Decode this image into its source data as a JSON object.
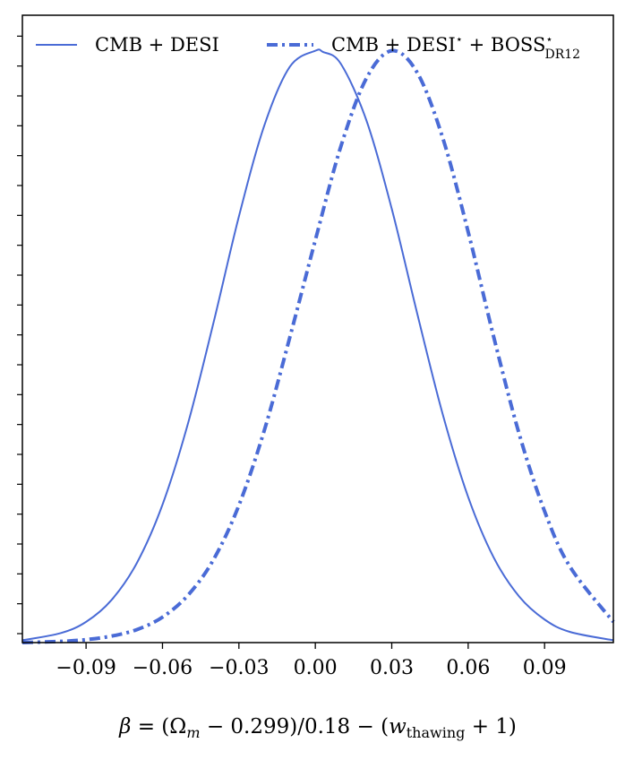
{
  "chart_data": {
    "type": "line",
    "title": "",
    "xlabel": {
      "beta": "β",
      "eq": " = (Ω",
      "m": "m",
      "mid": " − 0.299)/0.18 − (",
      "w": "w",
      "thawing": "thawing",
      "end": " + 1)"
    },
    "ylabel": "",
    "xlim": [
      -0.115,
      0.117
    ],
    "ylim": [
      0,
      1.06
    ],
    "xticks": [
      -0.09,
      -0.06,
      -0.03,
      0.0,
      0.03,
      0.06,
      0.09
    ],
    "xtick_labels": [
      "−0.09",
      "−0.06",
      "−0.03",
      "0.00",
      "0.03",
      "0.06",
      "0.09"
    ],
    "yticks_count": 21,
    "grid": false,
    "legend_position": "top",
    "series": [
      {
        "name": "CMB + DESI",
        "style": "solid",
        "color": "#4a6bd6",
        "x": [
          -0.115,
          -0.1,
          -0.09,
          -0.08,
          -0.07,
          -0.06,
          -0.05,
          -0.04,
          -0.03,
          -0.02,
          -0.01,
          0.0,
          0.003,
          0.01,
          0.02,
          0.03,
          0.04,
          0.05,
          0.06,
          0.07,
          0.08,
          0.09,
          0.1,
          0.117
        ],
        "y": [
          0.004,
          0.016,
          0.035,
          0.072,
          0.135,
          0.233,
          0.37,
          0.54,
          0.72,
          0.874,
          0.973,
          1.0,
          0.998,
          0.978,
          0.883,
          0.733,
          0.556,
          0.386,
          0.246,
          0.144,
          0.078,
          0.039,
          0.018,
          0.004
        ]
      },
      {
        "name_parts": {
          "pre": "CMB + DESI",
          "star1": "⋆",
          "mid": " + BOSS",
          "star2": "⋆",
          "sub": "DR12"
        },
        "style": "dashdot",
        "color": "#4a6bd6",
        "x": [
          -0.115,
          -0.1,
          -0.09,
          -0.08,
          -0.07,
          -0.06,
          -0.05,
          -0.04,
          -0.03,
          -0.02,
          -0.01,
          0.0,
          0.01,
          0.02,
          0.03,
          0.04,
          0.05,
          0.06,
          0.07,
          0.08,
          0.09,
          0.1,
          0.117
        ],
        "y": [
          0.0,
          0.002,
          0.005,
          0.011,
          0.022,
          0.043,
          0.08,
          0.14,
          0.232,
          0.359,
          0.516,
          0.68,
          0.838,
          0.953,
          1.0,
          0.963,
          0.853,
          0.694,
          0.517,
          0.353,
          0.222,
          0.128,
          0.035
        ]
      }
    ]
  }
}
